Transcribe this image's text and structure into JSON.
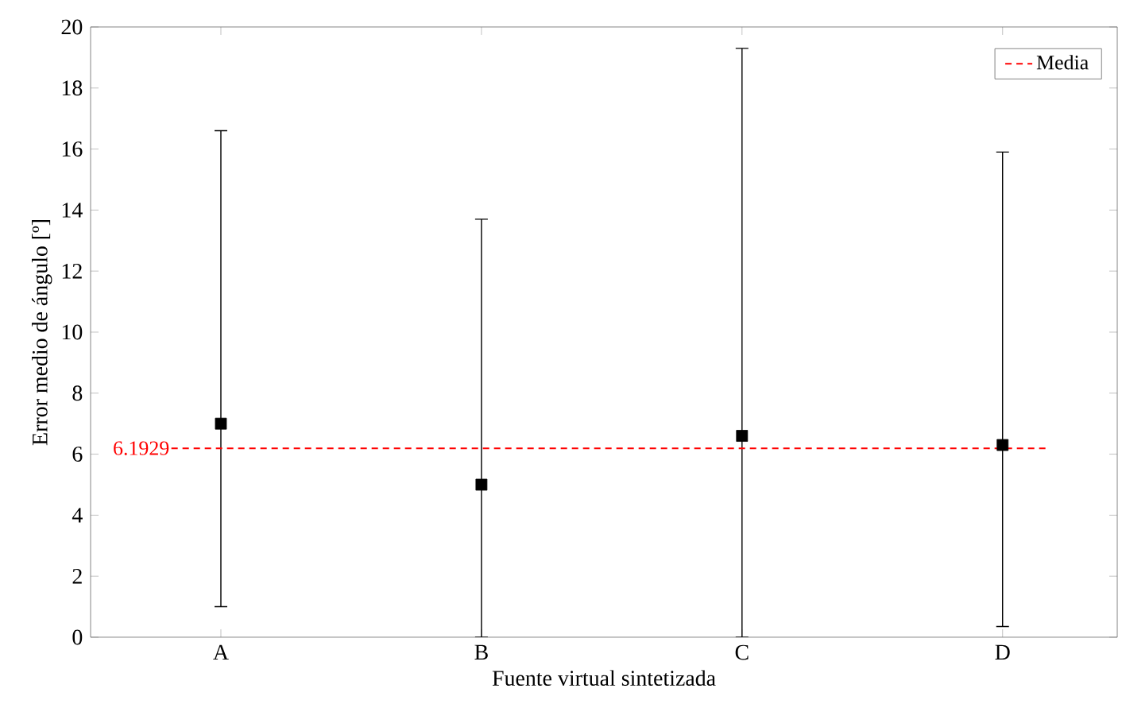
{
  "chart_data": {
    "type": "scatter",
    "xlabel": "Fuente virtual sintetizada",
    "ylabel": "Error medio de ángulo [º]",
    "categories": [
      "A",
      "B",
      "C",
      "D"
    ],
    "series": [
      {
        "color": "#000000",
        "values": [
          7.0,
          5.0,
          6.6,
          6.3
        ],
        "errors": [
          [
            1.0,
            16.6
          ],
          [
            0,
            13.7
          ],
          [
            0,
            19.3
          ],
          [
            0.35,
            15.9
          ]
        ]
      }
    ],
    "marker": "square",
    "ylim": [
      0,
      20
    ],
    "yticks": [
      0,
      2,
      4,
      6,
      8,
      10,
      12,
      14,
      16,
      18,
      20
    ],
    "ref_lines": [
      {
        "axis": "y",
        "value": 6.1929,
        "label": "Media",
        "color": "#ff0000",
        "line_style": "dashed"
      }
    ],
    "annotations": [
      "6.1929"
    ],
    "legend": "top right",
    "grid": false
  }
}
